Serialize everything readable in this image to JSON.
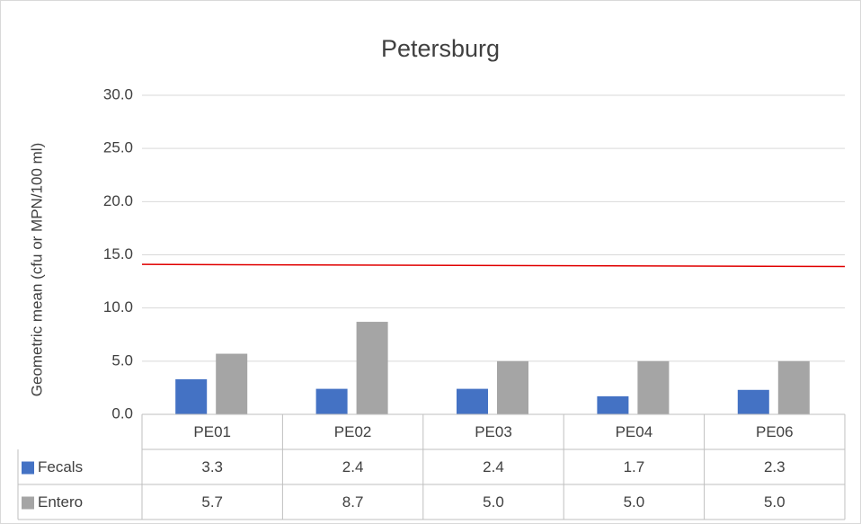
{
  "chart_data": {
    "type": "bar",
    "title": "Petersburg",
    "y_label": "Geometric mean (cfu or MPN/100 ml)",
    "categories": [
      "PE01",
      "PE02",
      "PE03",
      "PE04",
      "PE06"
    ],
    "series": [
      {
        "name": "Fecals",
        "color": "#4472c4",
        "values": [
          3.3,
          2.4,
          2.4,
          1.7,
          2.3
        ],
        "value_labels": [
          "3.3",
          "2.4",
          "2.4",
          "1.7",
          "2.3"
        ]
      },
      {
        "name": "Entero",
        "color": "#a5a5a5",
        "values": [
          5.7,
          8.7,
          5.0,
          5.0,
          5.0
        ],
        "value_labels": [
          "5.7",
          "8.7",
          "5.0",
          "5.0",
          "5.0"
        ]
      }
    ],
    "reference_line": {
      "color": "#e00000",
      "values": [
        14.1,
        13.9
      ]
    },
    "ylim": [
      0,
      30
    ],
    "yticks": [
      {
        "value": 0,
        "label": "0.0"
      },
      {
        "value": 5,
        "label": "5.0"
      },
      {
        "value": 10,
        "label": "10.0"
      },
      {
        "value": 15,
        "label": "15.0"
      },
      {
        "value": 20,
        "label": "20.0"
      },
      {
        "value": 25,
        "label": "25.0"
      },
      {
        "value": 30,
        "label": "30.0"
      }
    ],
    "grid": true,
    "data_table": true
  }
}
